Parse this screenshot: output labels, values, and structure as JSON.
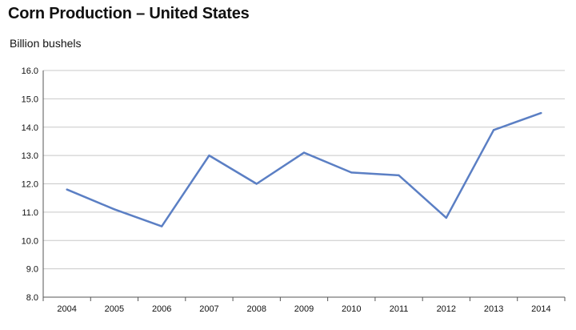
{
  "chart_data": {
    "type": "line",
    "title": "Corn Production – United States",
    "ylabel": "Billion bushels",
    "xlabel": "",
    "categories": [
      "2004",
      "2005",
      "2006",
      "2007",
      "2008",
      "2009",
      "2010",
      "2011",
      "2012",
      "2013",
      "2014"
    ],
    "series": [
      {
        "values": [
          11.8,
          11.1,
          10.5,
          13.0,
          12.0,
          13.1,
          12.4,
          12.3,
          10.8,
          13.9,
          14.5
        ]
      }
    ],
    "ylim": [
      8.0,
      16.0
    ],
    "yticks": [
      "8.0",
      "9.0",
      "10.0",
      "11.0",
      "12.0",
      "13.0",
      "14.0",
      "15.0",
      "16.0"
    ],
    "grid": true,
    "line_color": "#5b7fc4",
    "grid_color": "#c8c8c8"
  }
}
